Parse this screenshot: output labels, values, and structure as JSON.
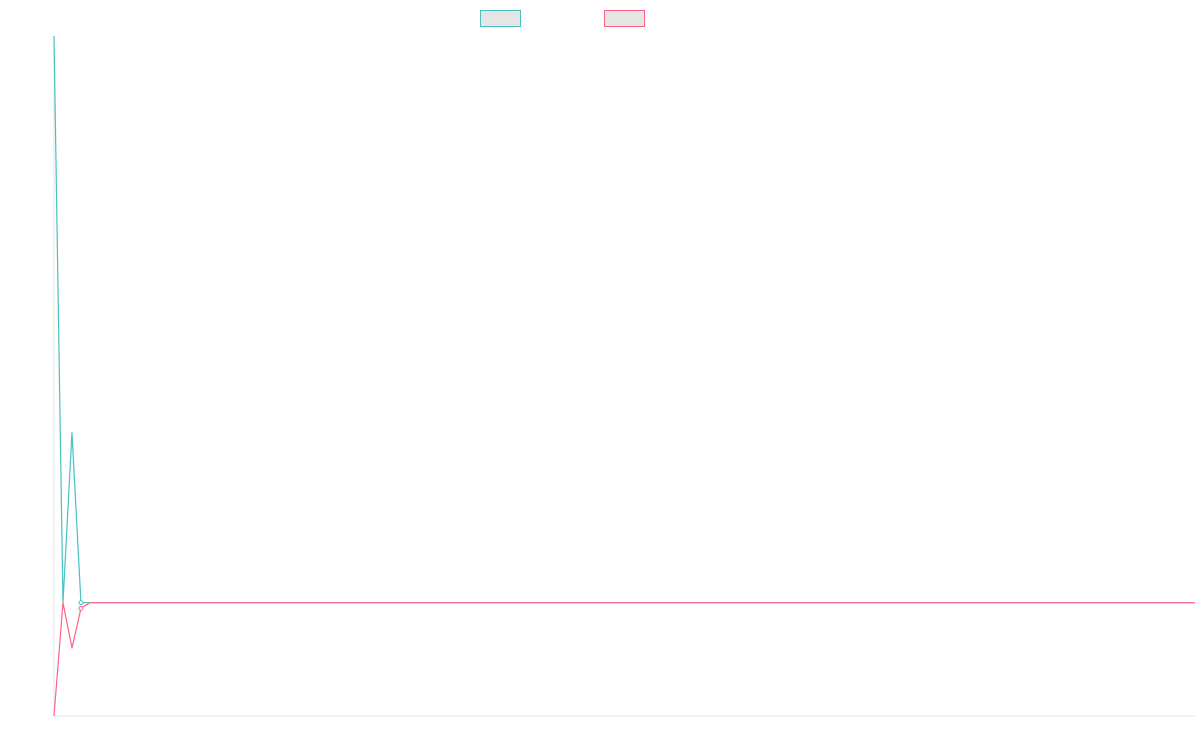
{
  "chart_data": {
    "type": "line",
    "title": "",
    "xlabel": "",
    "ylabel": "",
    "grid": false,
    "legend_position": "top-center",
    "ylim": [
      -1,
      5
    ],
    "x": [
      0,
      1,
      2,
      3,
      4,
      5,
      6,
      7,
      8,
      9,
      10,
      11,
      12,
      13,
      14,
      15,
      16,
      17,
      18,
      19,
      20,
      21,
      22,
      23,
      24,
      25,
      26,
      27,
      28,
      29,
      30,
      31,
      32,
      33,
      34,
      35,
      36,
      37,
      38,
      39,
      40,
      41,
      42,
      43,
      44,
      45,
      46,
      47,
      48,
      49,
      50,
      51,
      52,
      53,
      54,
      55,
      56,
      57,
      58,
      59,
      60,
      61,
      62,
      63,
      64,
      65,
      66,
      67,
      68,
      69,
      70,
      71,
      72,
      73,
      74,
      75,
      76,
      77,
      78,
      79,
      80,
      81,
      82,
      83,
      84,
      85,
      86,
      87,
      88,
      89,
      90,
      91,
      92,
      93,
      94,
      95,
      96,
      97,
      98,
      99,
      100,
      101,
      102,
      103,
      104,
      105,
      106,
      107,
      108,
      109,
      110,
      111,
      112,
      113,
      114,
      115,
      116,
      117,
      118,
      119,
      120,
      121,
      122,
      123,
      124,
      125,
      126,
      127
    ],
    "series": [
      {
        "color": "#4bc0c0",
        "fill": "#e5e5e5",
        "values": [
          5,
          0,
          1.5,
          0,
          0,
          0,
          0,
          0,
          0,
          0,
          0,
          0,
          0,
          0,
          0,
          0,
          0,
          0,
          0,
          0,
          0,
          0,
          0,
          0,
          0,
          0,
          0,
          0,
          0,
          0,
          0,
          0,
          0,
          0,
          0,
          0,
          0,
          0,
          0,
          0,
          0,
          0,
          0,
          0,
          0,
          0,
          0,
          0,
          0,
          0,
          0,
          0,
          0,
          0,
          0,
          0,
          0,
          0,
          0,
          0,
          0,
          0,
          0,
          0,
          0,
          0,
          0,
          0,
          0,
          0,
          0,
          0,
          0,
          0,
          0,
          0,
          0,
          0,
          0,
          0,
          0,
          0,
          0,
          0,
          0,
          0,
          0,
          0,
          0,
          0,
          0,
          0,
          0,
          0,
          0,
          0,
          0,
          0,
          0,
          0,
          0,
          0,
          0,
          0,
          0,
          0,
          0,
          0,
          0,
          0,
          0,
          0,
          0,
          0,
          0,
          0,
          0,
          0,
          0,
          0,
          0,
          0,
          0,
          0,
          0,
          0,
          0,
          0
        ]
      },
      {
        "color": "#ff6384",
        "fill": "#e5e5e5",
        "values": [
          -1,
          0,
          -0.4,
          -0.05,
          0,
          0,
          0,
          0,
          0,
          0,
          0,
          0,
          0,
          0,
          0,
          0,
          0,
          0,
          0,
          0,
          0,
          0,
          0,
          0,
          0,
          0,
          0,
          0,
          0,
          0,
          0,
          0,
          0,
          0,
          0,
          0,
          0,
          0,
          0,
          0,
          0,
          0,
          0,
          0,
          0,
          0,
          0,
          0,
          0,
          0,
          0,
          0,
          0,
          0,
          0,
          0,
          0,
          0,
          0,
          0,
          0,
          0,
          0,
          0,
          0,
          0,
          0,
          0,
          0,
          0,
          0,
          0,
          0,
          0,
          0,
          0,
          0,
          0,
          0,
          0,
          0,
          0,
          0,
          0,
          0,
          0,
          0,
          0,
          0,
          0,
          0,
          0,
          0,
          0,
          0,
          0,
          0,
          0,
          0,
          0,
          0,
          0,
          0,
          0,
          0,
          0,
          0,
          0,
          0,
          0,
          0,
          0,
          0,
          0,
          0,
          0,
          0,
          0,
          0,
          0,
          0,
          0,
          0,
          0,
          0,
          0,
          0,
          0
        ]
      }
    ]
  },
  "style": {
    "axis_color": "#e6e6e6",
    "background": "#ffffff"
  }
}
